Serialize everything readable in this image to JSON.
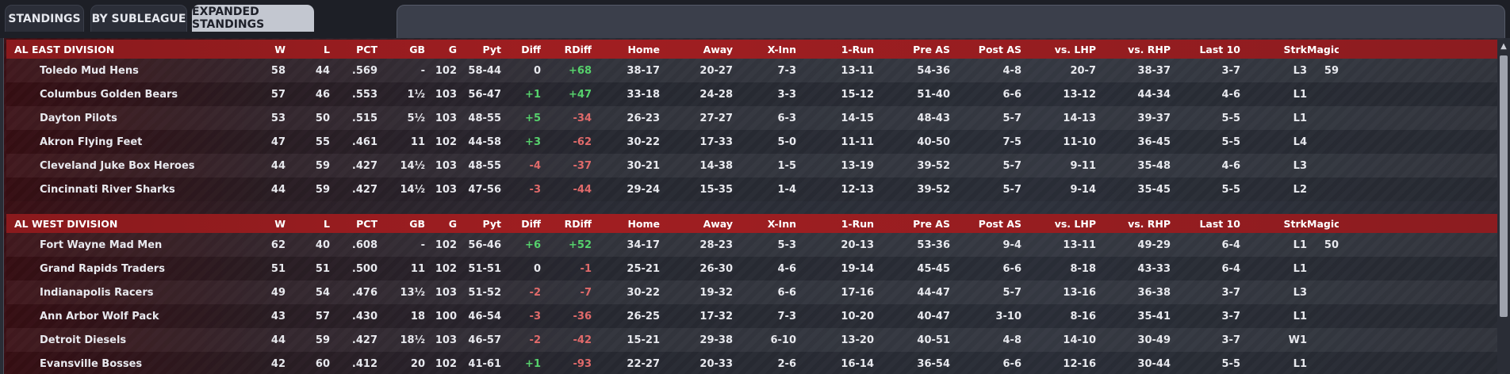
{
  "tabs": [
    {
      "label": "STANDINGS",
      "active": false
    },
    {
      "label": "BY SUBLEAGUE",
      "active": false
    },
    {
      "label": "EXPANDED STANDINGS",
      "active": true
    }
  ],
  "columns": [
    "W",
    "L",
    "PCT",
    "GB",
    "G",
    "Pyt",
    "Diff",
    "RDiff",
    "Home",
    "Away",
    "X-Inn",
    "1-Run",
    "Pre AS",
    "Post AS",
    "vs. LHP",
    "vs. RHP",
    "Last 10",
    "Strk",
    "Magic#"
  ],
  "divisions": [
    {
      "name": "AL EAST DIVISION",
      "teams": [
        {
          "team": "Toledo  Mud Hens",
          "W": "58",
          "L": "44",
          "PCT": ".569",
          "GB": "-",
          "G": "102",
          "Pyt": "58-44",
          "Diff": "0",
          "RDiff": "+68",
          "Home": "38-17",
          "Away": "20-27",
          "XInn": "7-3",
          "OneRun": "13-11",
          "PreAS": "54-36",
          "PostAS": "4-8",
          "vsLHP": "20-7",
          "vsRHP": "38-37",
          "Last10": "3-7",
          "Strk": "L3",
          "Magic": "59"
        },
        {
          "team": "Columbus Golden Bears",
          "W": "57",
          "L": "46",
          "PCT": ".553",
          "GB": "1½",
          "G": "103",
          "Pyt": "56-47",
          "Diff": "+1",
          "RDiff": "+47",
          "Home": "33-18",
          "Away": "24-28",
          "XInn": "3-3",
          "OneRun": "15-12",
          "PreAS": "51-40",
          "PostAS": "6-6",
          "vsLHP": "13-12",
          "vsRHP": "44-34",
          "Last10": "4-6",
          "Strk": "L1",
          "Magic": ""
        },
        {
          "team": "Dayton Pilots",
          "W": "53",
          "L": "50",
          "PCT": ".515",
          "GB": "5½",
          "G": "103",
          "Pyt": "48-55",
          "Diff": "+5",
          "RDiff": "-34",
          "Home": "26-23",
          "Away": "27-27",
          "XInn": "6-3",
          "OneRun": "14-15",
          "PreAS": "48-43",
          "PostAS": "5-7",
          "vsLHP": "14-13",
          "vsRHP": "39-37",
          "Last10": "5-5",
          "Strk": "L1",
          "Magic": ""
        },
        {
          "team": "Akron  Flying Feet",
          "W": "47",
          "L": "55",
          "PCT": ".461",
          "GB": "11",
          "G": "102",
          "Pyt": "44-58",
          "Diff": "+3",
          "RDiff": "-62",
          "Home": "30-22",
          "Away": "17-33",
          "XInn": "5-0",
          "OneRun": "11-11",
          "PreAS": "40-50",
          "PostAS": "7-5",
          "vsLHP": "11-10",
          "vsRHP": "36-45",
          "Last10": "5-5",
          "Strk": "L4",
          "Magic": ""
        },
        {
          "team": "Cleveland Juke Box Heroes",
          "W": "44",
          "L": "59",
          "PCT": ".427",
          "GB": "14½",
          "G": "103",
          "Pyt": "48-55",
          "Diff": "-4",
          "RDiff": "-37",
          "Home": "30-21",
          "Away": "14-38",
          "XInn": "1-5",
          "OneRun": "13-19",
          "PreAS": "39-52",
          "PostAS": "5-7",
          "vsLHP": "9-11",
          "vsRHP": "35-48",
          "Last10": "4-6",
          "Strk": "L3",
          "Magic": ""
        },
        {
          "team": "Cincinnati River Sharks",
          "W": "44",
          "L": "59",
          "PCT": ".427",
          "GB": "14½",
          "G": "103",
          "Pyt": "47-56",
          "Diff": "-3",
          "RDiff": "-44",
          "Home": "29-24",
          "Away": "15-35",
          "XInn": "1-4",
          "OneRun": "12-13",
          "PreAS": "39-52",
          "PostAS": "5-7",
          "vsLHP": "9-14",
          "vsRHP": "35-45",
          "Last10": "5-5",
          "Strk": "L2",
          "Magic": ""
        }
      ]
    },
    {
      "name": "AL WEST DIVISION",
      "teams": [
        {
          "team": "Fort Wayne Mad Men",
          "W": "62",
          "L": "40",
          "PCT": ".608",
          "GB": "-",
          "G": "102",
          "Pyt": "56-46",
          "Diff": "+6",
          "RDiff": "+52",
          "Home": "34-17",
          "Away": "28-23",
          "XInn": "5-3",
          "OneRun": "20-13",
          "PreAS": "53-36",
          "PostAS": "9-4",
          "vsLHP": "13-11",
          "vsRHP": "49-29",
          "Last10": "6-4",
          "Strk": "L1",
          "Magic": "50"
        },
        {
          "team": "Grand Rapids Traders",
          "W": "51",
          "L": "51",
          "PCT": ".500",
          "GB": "11",
          "G": "102",
          "Pyt": "51-51",
          "Diff": "0",
          "RDiff": "-1",
          "Home": "25-21",
          "Away": "26-30",
          "XInn": "4-6",
          "OneRun": "19-14",
          "PreAS": "45-45",
          "PostAS": "6-6",
          "vsLHP": "8-18",
          "vsRHP": "43-33",
          "Last10": "6-4",
          "Strk": "L1",
          "Magic": ""
        },
        {
          "team": "Indianapolis Racers",
          "W": "49",
          "L": "54",
          "PCT": ".476",
          "GB": "13½",
          "G": "103",
          "Pyt": "51-52",
          "Diff": "-2",
          "RDiff": "-7",
          "Home": "30-22",
          "Away": "19-32",
          "XInn": "6-6",
          "OneRun": "17-16",
          "PreAS": "44-47",
          "PostAS": "5-7",
          "vsLHP": "13-16",
          "vsRHP": "36-38",
          "Last10": "3-7",
          "Strk": "L3",
          "Magic": ""
        },
        {
          "team": "Ann Arbor Wolf Pack",
          "W": "43",
          "L": "57",
          "PCT": ".430",
          "GB": "18",
          "G": "100",
          "Pyt": "46-54",
          "Diff": "-3",
          "RDiff": "-36",
          "Home": "26-25",
          "Away": "17-32",
          "XInn": "7-3",
          "OneRun": "10-20",
          "PreAS": "40-47",
          "PostAS": "3-10",
          "vsLHP": "8-16",
          "vsRHP": "35-41",
          "Last10": "3-7",
          "Strk": "L1",
          "Magic": ""
        },
        {
          "team": "Detroit Diesels",
          "W": "44",
          "L": "59",
          "PCT": ".427",
          "GB": "18½",
          "G": "103",
          "Pyt": "46-57",
          "Diff": "-2",
          "RDiff": "-42",
          "Home": "15-21",
          "Away": "29-38",
          "XInn": "6-10",
          "OneRun": "13-20",
          "PreAS": "40-51",
          "PostAS": "4-8",
          "vsLHP": "14-10",
          "vsRHP": "30-49",
          "Last10": "3-7",
          "Strk": "W1",
          "Magic": ""
        },
        {
          "team": "Evansville Bosses",
          "W": "42",
          "L": "60",
          "PCT": ".412",
          "GB": "20",
          "G": "102",
          "Pyt": "41-61",
          "Diff": "+1",
          "RDiff": "-93",
          "Home": "22-27",
          "Away": "20-33",
          "XInn": "2-6",
          "OneRun": "16-14",
          "PreAS": "36-54",
          "PostAS": "6-6",
          "vsLHP": "12-16",
          "vsRHP": "30-44",
          "Last10": "5-5",
          "Strk": "L1",
          "Magic": ""
        }
      ]
    }
  ],
  "colors": {
    "positive": "#56d16c",
    "negative": "#e06a6a",
    "header": "#a01e21"
  }
}
